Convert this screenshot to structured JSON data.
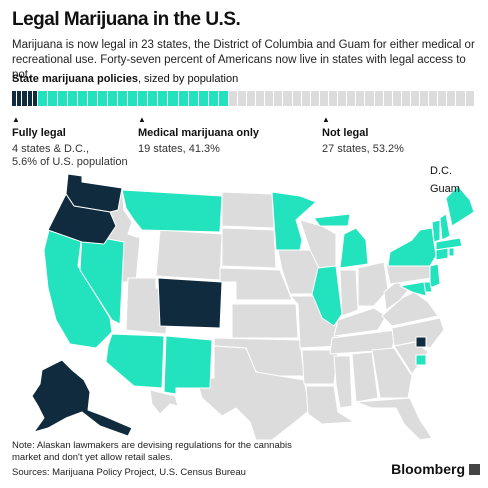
{
  "title": "Legal Marijuana in the U.S.",
  "subtitle": "Marijuana is now legal in 23 states, the District of Columbia and Guam for either medical or recreational use. Forty-seven percent of Americans now live in states with legal access to pot.",
  "policies_heading": "State marijuana policies",
  "policies_subheading": ", sized by population",
  "colors": {
    "fully_legal": "#0f2b3d",
    "medical": "#22e3bd",
    "not_legal": "#dcdcdc"
  },
  "categories": [
    {
      "name": "Fully legal",
      "desc1": "4 states & D.C.,",
      "desc2": "5.6% of U.S. population",
      "share": 5.6
    },
    {
      "name": "Medical marijuana only",
      "desc1": "19 states, 41.3%",
      "desc2": "",
      "share": 41.3
    },
    {
      "name": "Not legal",
      "desc1": "27 states, 53.2%",
      "desc2": "",
      "share": 53.2
    }
  ],
  "legend": {
    "dc": "D.C.",
    "guam": "Guam"
  },
  "states": {
    "fully_legal": [
      "Washington",
      "Oregon",
      "Colorado",
      "Alaska"
    ],
    "medical": [
      "California",
      "Nevada",
      "Arizona",
      "New Mexico",
      "Montana",
      "Minnesota",
      "Illinois",
      "Michigan",
      "New York",
      "Vermont",
      "New Hampshire",
      "Maine",
      "Massachusetts",
      "Rhode Island",
      "Connecticut",
      "New Jersey",
      "Delaware",
      "Maryland",
      "Hawaii"
    ]
  },
  "note": "Note: Alaskan lawmakers are devising regulations for the cannabis market and don't yet allow retail sales.",
  "source": "Sources: Marijuana Policy Project, U.S. Census Bureau",
  "brand": "Bloomberg"
}
